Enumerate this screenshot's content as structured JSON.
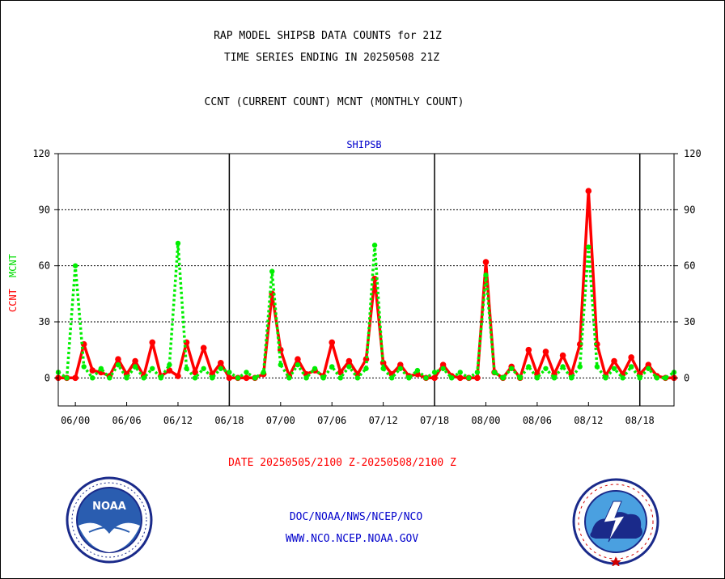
{
  "chart_data": {
    "type": "line",
    "title": "RAP MODEL SHIPSB DATA COUNTS for 21Z",
    "subtitle": "TIME SERIES ENDING IN 20250508 21Z",
    "description": "CCNT (CURRENT COUNT) MCNT (MONTHLY COUNT)",
    "panel_label": "SHIPSB",
    "ylabel_ccnt": "CCNT",
    "ylabel_mcnt": "MCNT",
    "xlabel": "DATE 20250505/2100 Z-20250508/2100 Z",
    "ylim": [
      -15,
      120
    ],
    "yticks": [
      0,
      30,
      60,
      90,
      120
    ],
    "xlim": [
      -2,
      70
    ],
    "x_tick_positions": [
      0,
      6,
      12,
      18,
      24,
      30,
      36,
      42,
      48,
      54,
      60,
      66
    ],
    "x_tick_labels": [
      "06/00",
      "06/06",
      "06/12",
      "06/18",
      "07/00",
      "07/06",
      "07/12",
      "07/18",
      "08/00",
      "08/06",
      "08/12",
      "08/18"
    ],
    "day_boundaries": [
      18,
      42,
      66
    ],
    "grid": true,
    "colors": {
      "ccnt": "#ff0000",
      "mcnt": "#00ee00",
      "grid": "#000000",
      "text_blue": "#0000cc"
    },
    "series": [
      {
        "name": "CCNT",
        "color": "#ff0000",
        "x": [
          -2,
          -1,
          0,
          1,
          2,
          3,
          4,
          5,
          6,
          7,
          8,
          9,
          10,
          11,
          12,
          13,
          14,
          15,
          16,
          17,
          18,
          19,
          20,
          21,
          22,
          23,
          24,
          25,
          26,
          27,
          28,
          29,
          30,
          31,
          32,
          33,
          34,
          35,
          36,
          37,
          38,
          39,
          40,
          41,
          42,
          43,
          44,
          45,
          46,
          47,
          48,
          49,
          50,
          51,
          52,
          53,
          54,
          55,
          56,
          57,
          58,
          59,
          60,
          61,
          62,
          63,
          64,
          65,
          66,
          67,
          68,
          69,
          70
        ],
        "values": [
          0,
          0,
          0,
          18,
          4,
          3,
          1,
          10,
          2,
          9,
          1,
          19,
          1,
          4,
          1,
          19,
          3,
          16,
          2,
          8,
          0,
          0,
          0,
          0,
          2,
          45,
          15,
          1,
          10,
          2,
          4,
          1,
          19,
          3,
          9,
          2,
          10,
          53,
          8,
          2,
          7,
          1,
          2,
          0,
          0,
          7,
          1,
          0,
          0,
          0,
          62,
          3,
          0,
          6,
          0,
          15,
          2,
          14,
          2,
          12,
          2,
          18,
          100,
          18,
          1,
          9,
          2,
          11,
          2,
          7,
          1,
          0,
          0
        ]
      },
      {
        "name": "MCNT",
        "color": "#00ee00",
        "x": [
          -2,
          -1,
          0,
          1,
          2,
          3,
          4,
          5,
          6,
          7,
          8,
          9,
          10,
          11,
          12,
          13,
          14,
          15,
          16,
          17,
          18,
          19,
          20,
          21,
          22,
          23,
          24,
          25,
          26,
          27,
          28,
          29,
          30,
          31,
          32,
          33,
          34,
          35,
          36,
          37,
          38,
          39,
          40,
          41,
          42,
          43,
          44,
          45,
          46,
          47,
          48,
          49,
          50,
          51,
          52,
          53,
          54,
          55,
          56,
          57,
          58,
          59,
          60,
          61,
          62,
          63,
          64,
          65,
          66,
          67,
          68,
          69,
          70
        ],
        "values": [
          3,
          0,
          60,
          6,
          0,
          5,
          0,
          7,
          0,
          6,
          0,
          5,
          0,
          7,
          72,
          5,
          0,
          5,
          0,
          5,
          3,
          0,
          3,
          0,
          3,
          57,
          7,
          0,
          7,
          0,
          5,
          0,
          6,
          0,
          6,
          0,
          5,
          71,
          5,
          0,
          5,
          0,
          4,
          0,
          3,
          5,
          0,
          3,
          0,
          3,
          55,
          3,
          0,
          5,
          0,
          6,
          0,
          5,
          0,
          6,
          0,
          6,
          70,
          6,
          0,
          5,
          0,
          6,
          0,
          5,
          0,
          0,
          3
        ]
      }
    ]
  },
  "footer": {
    "credit_line1": "DOC/NOAA/NWS/NCEP/NCO",
    "credit_line2": "WWW.NCO.NCEP.NOAA.GOV",
    "noaa_label": "NOAA"
  }
}
